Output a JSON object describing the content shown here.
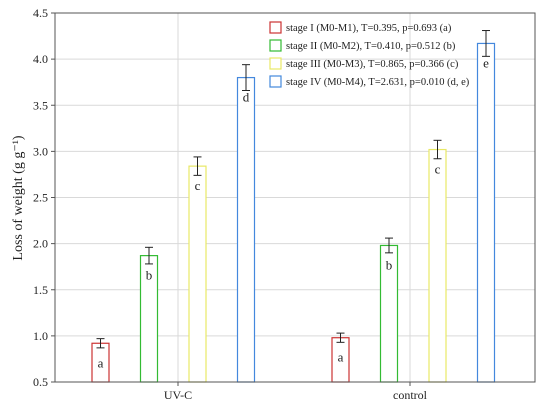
{
  "chart_data": {
    "type": "bar",
    "ylabel": "Loss of weight (g g⁻¹)",
    "ylim": [
      0.5,
      4.5
    ],
    "yticks": [
      "0.5",
      "1.0",
      "1.5",
      "2.0",
      "2.5",
      "3.0",
      "3.5",
      "4.0",
      "4.5"
    ],
    "grid": true,
    "legend_position": "top-right",
    "categories": [
      "UV-C",
      "control"
    ],
    "series": [
      {
        "name": "stage I (M0-M1), T=0.395, p=0.693 (a)",
        "color": "#cc3333",
        "values": [
          0.92,
          0.98
        ],
        "errors": [
          0.05,
          0.05
        ],
        "labels": [
          "a",
          "a"
        ]
      },
      {
        "name": "stage II (M0-M2), T=0.410, p=0.512 (b)",
        "color": "#33bb33",
        "values": [
          1.87,
          1.98
        ],
        "errors": [
          0.09,
          0.08
        ],
        "labels": [
          "b",
          "b"
        ]
      },
      {
        "name": "stage III (M0-M3), T=0.865, p=0.366 (c)",
        "color": "#e8e866",
        "values": [
          2.84,
          3.02
        ],
        "errors": [
          0.1,
          0.1
        ],
        "labels": [
          "c",
          "c"
        ]
      },
      {
        "name": "stage IV (M0-M4), T=2.631, p=0.010 (d, e)",
        "color": "#4488dd",
        "values": [
          3.8,
          4.17
        ],
        "errors": [
          0.14,
          0.14
        ],
        "labels": [
          "d",
          "e"
        ]
      }
    ]
  }
}
